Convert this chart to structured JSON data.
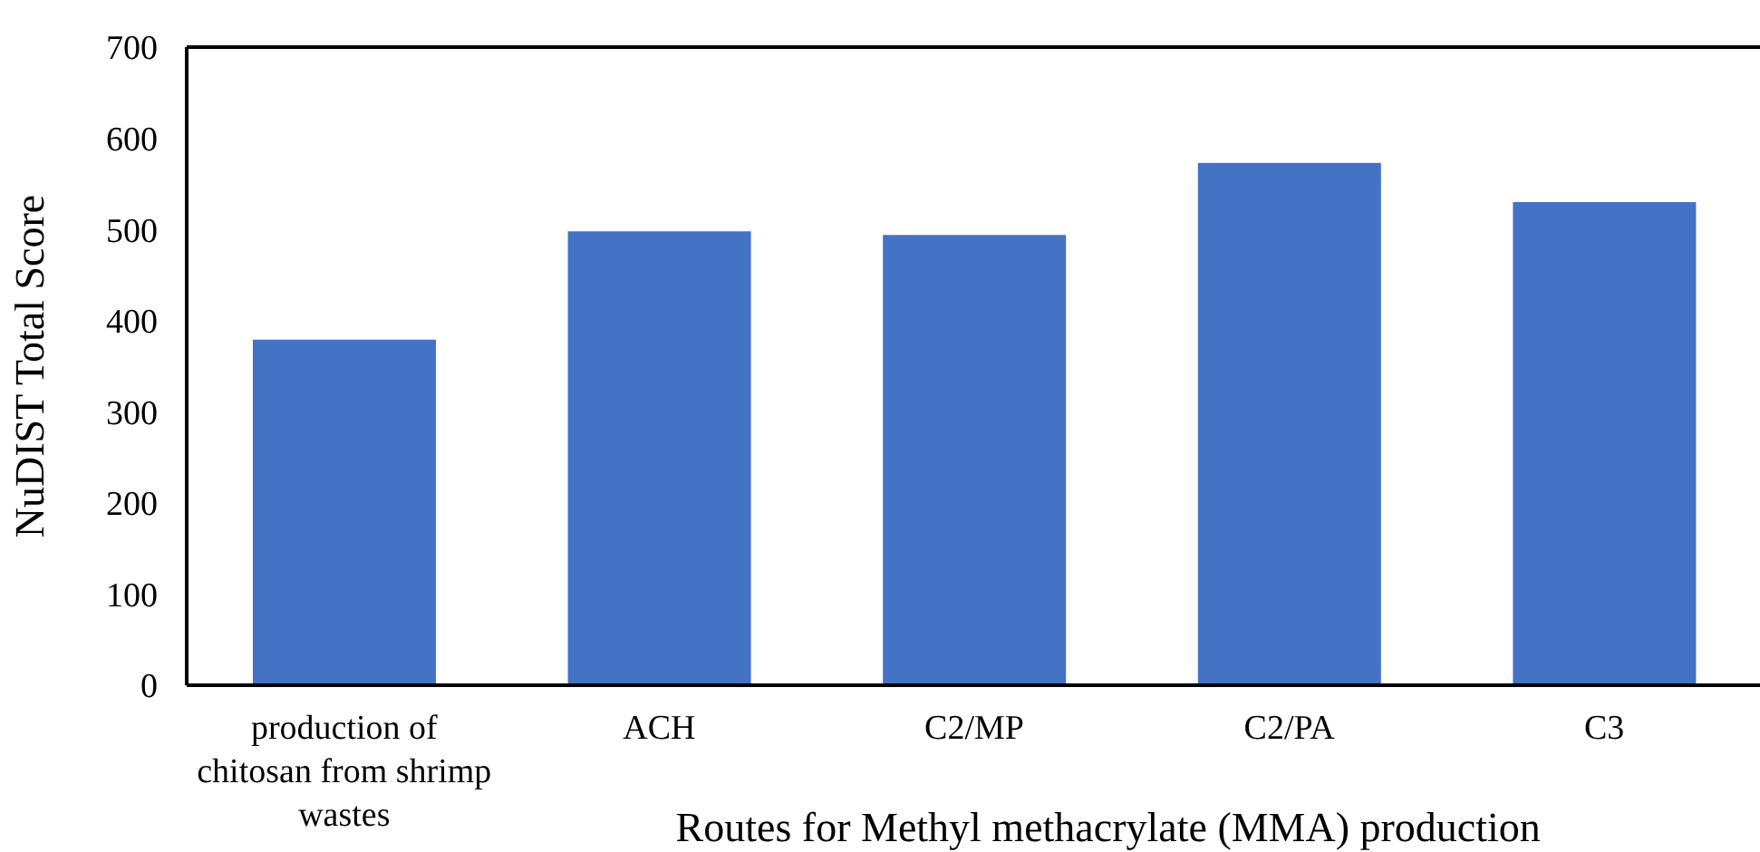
{
  "chart_data": {
    "type": "bar",
    "xlabel": "Routes for Methyl methacrylate (MMA) production",
    "ylabel": "NuDIST Total Score",
    "categories": [
      "production of chitosan from shrimp wastes",
      "ACH",
      "C2/MP",
      "C2/PA",
      "C3"
    ],
    "values": [
      379,
      498,
      494,
      573,
      530
    ],
    "color": "#4472c4",
    "ylim": [
      0,
      700
    ],
    "yticks": [
      0,
      100,
      200,
      300,
      400,
      500,
      600,
      700
    ],
    "grid": false,
    "legend": false
  }
}
